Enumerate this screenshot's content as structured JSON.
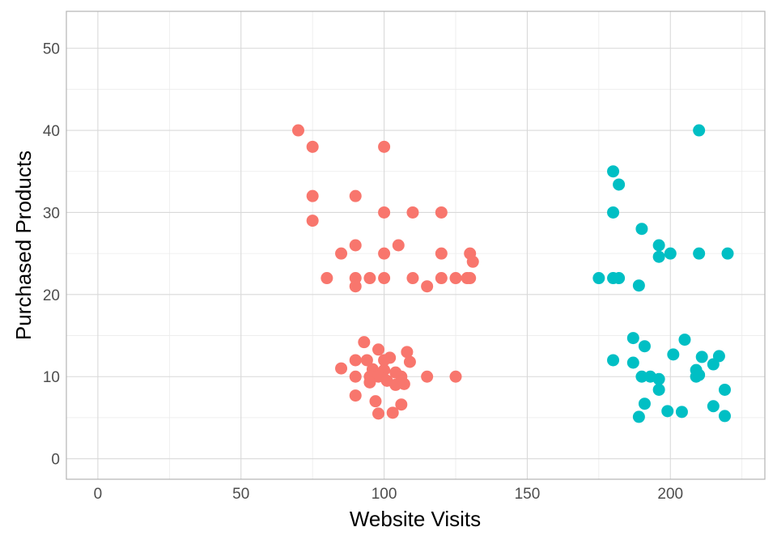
{
  "chart_data": {
    "type": "scatter",
    "title": "",
    "xlabel": "Website Visits",
    "ylabel": "Purchased Products",
    "xlim": [
      -11,
      233
    ],
    "ylim": [
      -2.5,
      54.5
    ],
    "x_ticks": [
      0,
      50,
      100,
      150,
      200
    ],
    "y_ticks": [
      0,
      10,
      20,
      30,
      40,
      50
    ],
    "grid": true,
    "legend": "none",
    "series": [
      {
        "color": "#F8766D",
        "points": [
          [
            70,
            40
          ],
          [
            75,
            38
          ],
          [
            100,
            38
          ],
          [
            75,
            32
          ],
          [
            90,
            32
          ],
          [
            75,
            29
          ],
          [
            100,
            30
          ],
          [
            110,
            30
          ],
          [
            120,
            30
          ],
          [
            90,
            26
          ],
          [
            105,
            26
          ],
          [
            85,
            25
          ],
          [
            100,
            25
          ],
          [
            120,
            25
          ],
          [
            130,
            25
          ],
          [
            131,
            24
          ],
          [
            80,
            22
          ],
          [
            90,
            22
          ],
          [
            95,
            22
          ],
          [
            100,
            22
          ],
          [
            110,
            22
          ],
          [
            120,
            22
          ],
          [
            125,
            22
          ],
          [
            129,
            22
          ],
          [
            130,
            22
          ],
          [
            90,
            21
          ],
          [
            115,
            21
          ],
          [
            93,
            14.2
          ],
          [
            98,
            13.3
          ],
          [
            108,
            13
          ],
          [
            102,
            12.3
          ],
          [
            90,
            12
          ],
          [
            94,
            12
          ],
          [
            100,
            12
          ],
          [
            109,
            11.8
          ],
          [
            85,
            11
          ],
          [
            96,
            10.9
          ],
          [
            100,
            10.8
          ],
          [
            104,
            10.5
          ],
          [
            90,
            10
          ],
          [
            95,
            10
          ],
          [
            98,
            10
          ],
          [
            106,
            10
          ],
          [
            115,
            10
          ],
          [
            125,
            10
          ],
          [
            95,
            9.3
          ],
          [
            101,
            9.5
          ],
          [
            104,
            9
          ],
          [
            107,
            9.1
          ],
          [
            90,
            7.7
          ],
          [
            97,
            7
          ],
          [
            106,
            6.6
          ],
          [
            98,
            5.5
          ],
          [
            103,
            5.6
          ]
        ]
      },
      {
        "color": "#00BFC4",
        "points": [
          [
            210,
            40
          ],
          [
            180,
            35
          ],
          [
            182,
            33.4
          ],
          [
            180,
            30
          ],
          [
            190,
            28
          ],
          [
            196,
            26
          ],
          [
            196,
            24.6
          ],
          [
            200,
            25
          ],
          [
            210,
            25
          ],
          [
            220,
            25
          ],
          [
            175,
            22
          ],
          [
            180,
            22
          ],
          [
            182,
            22
          ],
          [
            189,
            21.1
          ],
          [
            187,
            14.7
          ],
          [
            205,
            14.5
          ],
          [
            191,
            13.7
          ],
          [
            201,
            12.7
          ],
          [
            211,
            12.4
          ],
          [
            217,
            12.5
          ],
          [
            180,
            12
          ],
          [
            187,
            11.7
          ],
          [
            215,
            11.5
          ],
          [
            209,
            10.8
          ],
          [
            190,
            10
          ],
          [
            193,
            10
          ],
          [
            209,
            10
          ],
          [
            210,
            10.2
          ],
          [
            196,
            9.7
          ],
          [
            196,
            8.4
          ],
          [
            219,
            8.4
          ],
          [
            191,
            6.7
          ],
          [
            215,
            6.4
          ],
          [
            199,
            5.8
          ],
          [
            204,
            5.7
          ],
          [
            189,
            5.1
          ],
          [
            219,
            5.2
          ]
        ]
      }
    ]
  }
}
